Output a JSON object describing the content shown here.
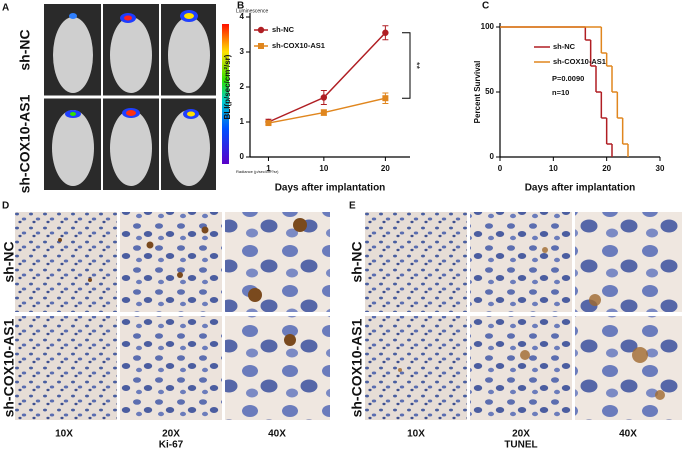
{
  "panel_a": {
    "label": "A",
    "rows": [
      "sh-NC",
      "sh-COX10-AS1"
    ],
    "colorbar_title": "Luminescence",
    "colorbar_unit": "Radiance (p/sec/cm²/sr)"
  },
  "chart_data": [
    {
      "type": "line",
      "panel_label": "B",
      "xlabel": "Days after implantation",
      "ylabel": "BLI(p/sec/cm²/sr)",
      "annotation": "**",
      "x": [
        1,
        10,
        20
      ],
      "xlim": [
        -2,
        24
      ],
      "xticks": [
        1,
        10,
        20
      ],
      "ylim": [
        0,
        4
      ],
      "yticks": [
        0,
        1,
        2,
        3,
        4
      ],
      "series": [
        {
          "name": "sh-NC",
          "color": "#b01e23",
          "marker": "circle",
          "values": [
            1.0,
            1.7,
            3.55
          ],
          "errors": [
            0.08,
            0.2,
            0.2
          ]
        },
        {
          "name": "sh-COX10-AS1",
          "color": "#e0861e",
          "marker": "square",
          "values": [
            0.97,
            1.27,
            1.68
          ],
          "errors": [
            0.05,
            0.08,
            0.15
          ]
        }
      ]
    },
    {
      "type": "step",
      "panel_label": "C",
      "xlabel": "Days after implantation",
      "ylabel": "Percent Survival",
      "annotations": [
        "P=0.0090",
        "n=10"
      ],
      "xlim": [
        0,
        30
      ],
      "xticks": [
        0,
        10,
        20,
        30
      ],
      "ylim": [
        0,
        100
      ],
      "yticks": [
        0,
        50,
        100
      ],
      "series": [
        {
          "name": "sh-NC",
          "color": "#b01e23",
          "x": [
            0,
            16,
            17,
            18,
            19,
            20,
            21
          ],
          "values": [
            100,
            90,
            70,
            50,
            30,
            10,
            0
          ]
        },
        {
          "name": "sh-COX10-AS1",
          "color": "#e0861e",
          "x": [
            0,
            19,
            20,
            21,
            22,
            23,
            24
          ],
          "values": [
            100,
            80,
            70,
            50,
            30,
            10,
            0
          ]
        }
      ]
    }
  ],
  "panel_d": {
    "label": "D",
    "rows": [
      "sh-NC",
      "sh-COX10-AS1"
    ],
    "columns": [
      "10X",
      "20X",
      "40X"
    ],
    "stain": "Ki-67"
  },
  "panel_e": {
    "label": "E",
    "rows": [
      "sh-NC",
      "sh-COX10-AS1"
    ],
    "columns": [
      "10X",
      "20X",
      "40X"
    ],
    "stain": "TUNEL"
  }
}
